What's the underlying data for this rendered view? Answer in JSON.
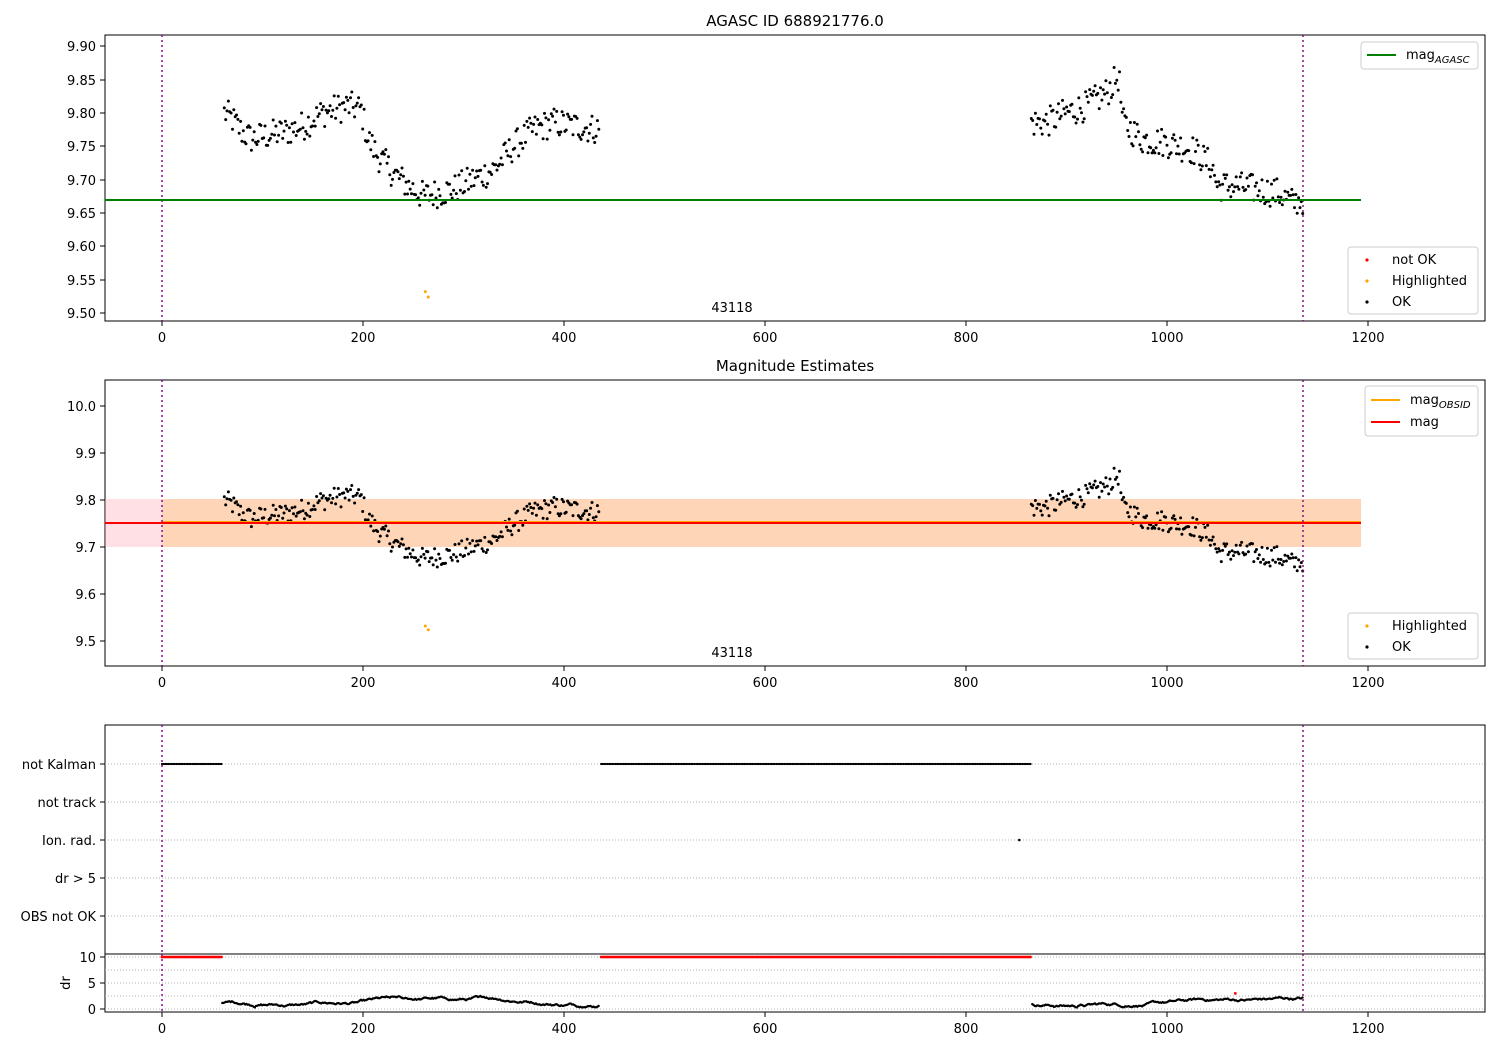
{
  "chart_data": [
    {
      "type": "scatter",
      "title": "AGASC ID 688921776.0",
      "xlabel": "",
      "ylabel": "",
      "xlim": [
        -57,
        1318
      ],
      "ylim": [
        9.49,
        9.915
      ],
      "xticks": [
        0,
        200,
        400,
        600,
        800,
        1000,
        1200
      ],
      "yticks": [
        9.5,
        9.55,
        9.6,
        9.65,
        9.7,
        9.75,
        9.8,
        9.85,
        9.9
      ],
      "ytick_labels": [
        "9.50",
        "9.55",
        "9.60",
        "9.65",
        "9.70",
        "9.75",
        "9.80",
        "9.85",
        "9.90"
      ],
      "obsid_boundaries": [
        0,
        1135
      ],
      "obsid_label": {
        "text": "43118",
        "x": 568,
        "y": 9.503
      },
      "reference_lines": [
        {
          "name": "mag_AGASC",
          "value": 9.67,
          "x_range": [
            -57,
            1195
          ],
          "color": "#008000"
        }
      ],
      "series": [
        {
          "name": "not OK",
          "color": "#ff0000",
          "segments": []
        },
        {
          "name": "Highlighted",
          "color": "#ffa500",
          "points": [
            [
              262,
              9.532
            ],
            [
              265,
              9.524
            ]
          ]
        },
        {
          "name": "OK",
          "color": "#000000",
          "segments": [
            {
              "x": [
                62,
                435
              ],
              "y": [
                [
                  62,
                  9.8
                ],
                [
                  70,
                  9.79
                ],
                [
                  80,
                  9.77
                ],
                [
                  90,
                  9.76
                ],
                [
                  100,
                  9.765
                ],
                [
                  120,
                  9.77
                ],
                [
                  140,
                  9.78
                ],
                [
                  160,
                  9.8
                ],
                [
                  185,
                  9.81
                ],
                [
                  198,
                  9.805
                ],
                [
                  205,
                  9.76
                ],
                [
                  215,
                  9.735
                ],
                [
                  230,
                  9.71
                ],
                [
                  245,
                  9.69
                ],
                [
                  260,
                  9.675
                ],
                [
                  275,
                  9.68
                ],
                [
                  290,
                  9.685
                ],
                [
                  310,
                  9.7
                ],
                [
                  330,
                  9.715
                ],
                [
                  350,
                  9.75
                ],
                [
                  370,
                  9.775
                ],
                [
                  390,
                  9.785
                ],
                [
                  410,
                  9.78
                ],
                [
                  435,
                  9.775
                ]
              ]
            },
            {
              "x": [
                865,
                1135
              ],
              "y": [
                [
                  865,
                  9.785
                ],
                [
                  880,
                  9.785
                ],
                [
                  900,
                  9.8
                ],
                [
                  920,
                  9.81
                ],
                [
                  940,
                  9.83
                ],
                [
                  952,
                  9.855
                ],
                [
                  956,
                  9.785
                ],
                [
                  975,
                  9.76
                ],
                [
                  1000,
                  9.755
                ],
                [
                  1025,
                  9.745
                ],
                [
                  1045,
                  9.72
                ],
                [
                  1050,
                  9.69
                ],
                [
                  1070,
                  9.69
                ],
                [
                  1090,
                  9.685
                ],
                [
                  1110,
                  9.68
                ],
                [
                  1125,
                  9.665
                ],
                [
                  1135,
                  9.67
                ]
              ]
            }
          ]
        }
      ],
      "legend_lines": [
        "mag",
        "AGASC"
      ],
      "legend_points": [
        "not OK",
        "Highlighted",
        "OK"
      ]
    },
    {
      "type": "scatter",
      "title": "Magnitude Estimates",
      "xlabel": "",
      "ylabel": "",
      "xlim": [
        -57,
        1318
      ],
      "ylim": [
        9.445,
        10.055
      ],
      "xticks": [
        0,
        200,
        400,
        600,
        800,
        1000,
        1200
      ],
      "yticks": [
        9.5,
        9.6,
        9.7,
        9.8,
        9.9,
        10.0
      ],
      "ytick_labels": [
        "9.5",
        "9.6",
        "9.7",
        "9.8",
        "9.9",
        "10.0"
      ],
      "obsid_boundaries": [
        0,
        1135
      ],
      "obsid_label": {
        "text": "43118",
        "x": 568,
        "y": 9.461
      },
      "bands": [
        {
          "name": "mag_OBSID range",
          "y": [
            9.7,
            9.8
          ],
          "x_range": [
            0,
            1195
          ],
          "color": "#ffa500"
        },
        {
          "name": "mag range",
          "y": [
            9.7,
            9.8
          ],
          "x_range": [
            -57,
            1195
          ],
          "color": "#ff9aa8"
        }
      ],
      "reference_lines": [
        {
          "name": "mag_OBSID",
          "value": 9.752,
          "x_range": [
            0,
            1195
          ],
          "color": "#ffa500"
        },
        {
          "name": "mag",
          "value": 9.75,
          "x_range": [
            -57,
            1195
          ],
          "color": "#ff0000"
        }
      ],
      "series": [
        {
          "name": "Highlighted",
          "color": "#ffa500",
          "points": [
            [
              262,
              9.532
            ],
            [
              265,
              9.524
            ]
          ]
        },
        {
          "name": "OK",
          "color": "#000000",
          "same_as": "top panel OK points"
        }
      ],
      "legend_lines": [
        "mag",
        "OBSID",
        "mag"
      ],
      "legend_points": [
        "Highlighted",
        "OK"
      ]
    },
    {
      "type": "scatter",
      "title": "",
      "xlabel": "",
      "ylabel": "",
      "xlim": [
        -57,
        1318
      ],
      "categories": [
        "not Kalman",
        "not track",
        "Ion. rad.",
        "dr > 5",
        "OBS not OK"
      ],
      "flags": [
        {
          "category": "not Kalman",
          "x_ranges": [
            [
              0,
              60
            ],
            [
              437,
              865
            ]
          ]
        },
        {
          "category": "not track",
          "x_ranges": []
        },
        {
          "category": "Ion. rad.",
          "points": [
            853
          ]
        },
        {
          "category": "dr > 5",
          "x_ranges": []
        },
        {
          "category": "OBS not OK",
          "x_ranges": []
        }
      ]
    },
    {
      "type": "scatter",
      "title": "",
      "xlabel": "",
      "ylabel": "dr",
      "xlim": [
        -57,
        1318
      ],
      "ylim": [
        -0.3,
        10.3
      ],
      "xticks": [
        0,
        200,
        400,
        600,
        800,
        1000,
        1200
      ],
      "xtick_labels": [
        "0",
        "200",
        "400",
        "600",
        "800",
        "1000",
        "1200"
      ],
      "yticks": [
        0,
        5,
        10
      ],
      "ytick_labels": [
        "0",
        "5",
        "10"
      ],
      "series": [
        {
          "name": "capped",
          "color": "#ff0000",
          "value": 10,
          "x_ranges": [
            [
              0,
              60
            ],
            [
              437,
              865
            ]
          ]
        },
        {
          "name": "dr",
          "color": "#000000",
          "segments": [
            [
              60,
              435
            ],
            [
              866,
              1135
            ]
          ],
          "typical_range": [
            0.3,
            2.5
          ],
          "outliers": [
            [
              1068,
              3.0,
              "#ff0000"
            ]
          ]
        }
      ]
    }
  ]
}
